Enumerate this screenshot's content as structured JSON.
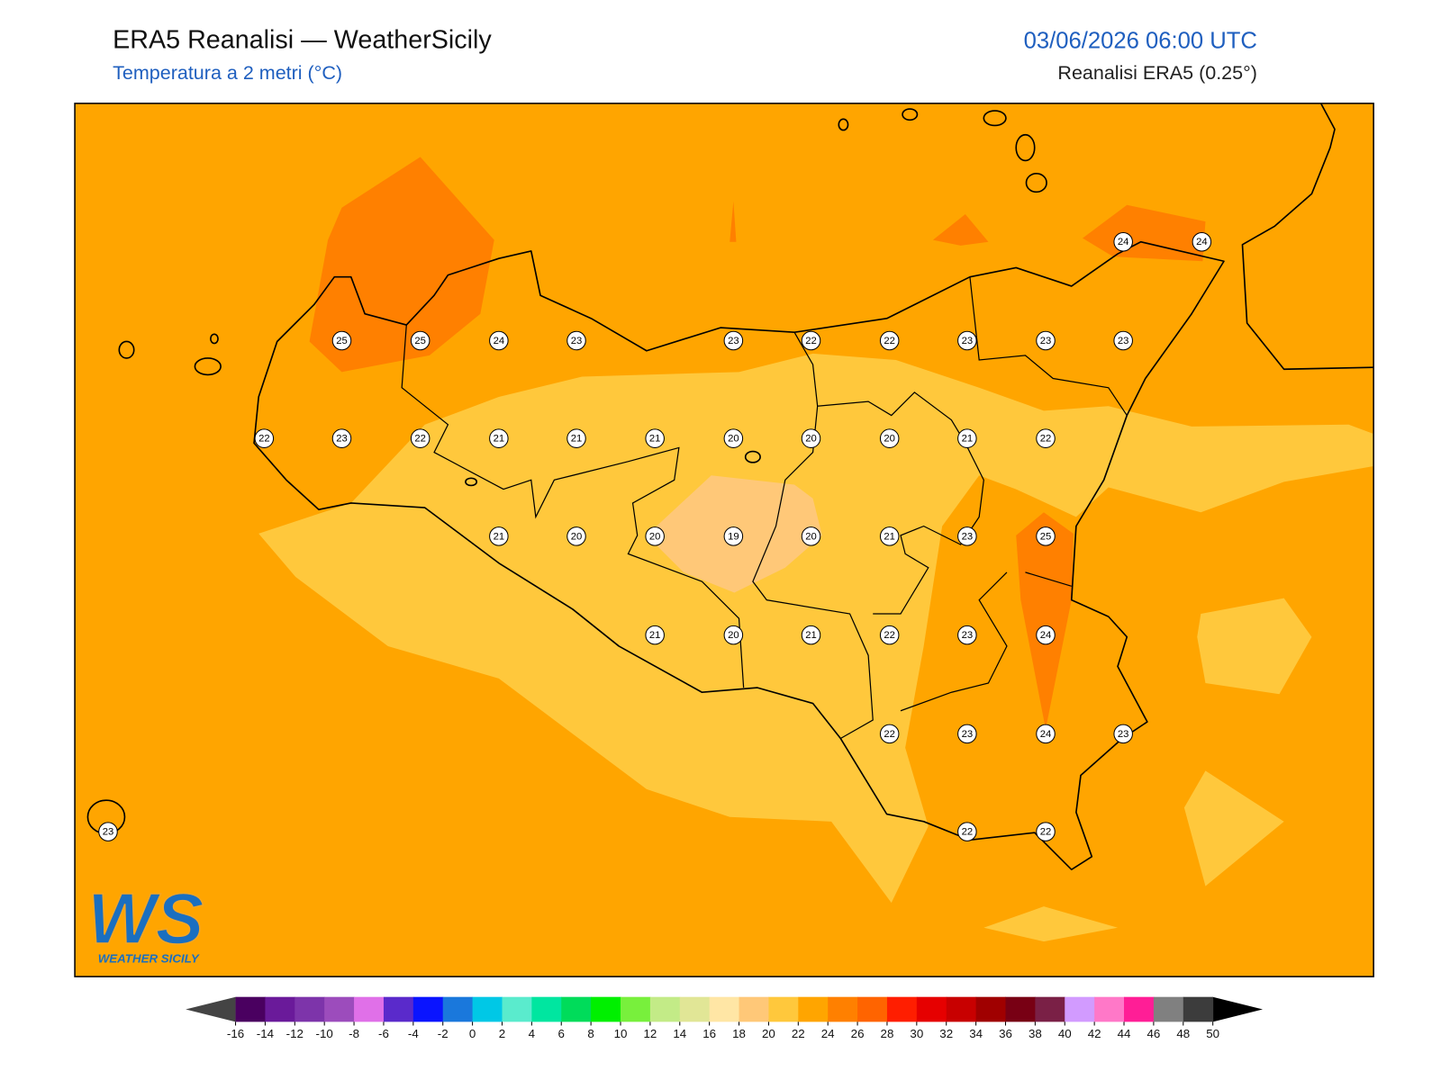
{
  "header": {
    "title": "ERA5 Reanalisi — WeatherSicily",
    "subtitle": "Temperatura a 2 metri (°C)",
    "datetime": "03/06/2026 06:00 UTC",
    "source": "Reanalisi ERA5 (0.25°)"
  },
  "map": {
    "stations": [
      24,
      24,
      25,
      25,
      24,
      23,
      23,
      22,
      22,
      23,
      23,
      23,
      22,
      23,
      22,
      21,
      21,
      21,
      20,
      20,
      20,
      21,
      22,
      21,
      20,
      20,
      19,
      20,
      21,
      23,
      25,
      21,
      20,
      21,
      22,
      23,
      24,
      22,
      23,
      24,
      23,
      23,
      22,
      22
    ]
  },
  "colorbar": {
    "ticks": [
      -16,
      -14,
      -12,
      -10,
      -8,
      -6,
      -4,
      -2,
      0,
      2,
      4,
      6,
      8,
      10,
      12,
      14,
      16,
      18,
      20,
      22,
      24,
      26,
      28,
      30,
      32,
      34,
      36,
      38,
      40,
      42,
      44,
      46,
      48,
      50
    ],
    "colors": [
      "#4a0060",
      "#6a1a9a",
      "#7d34aa",
      "#9c4cbc",
      "#e070e8",
      "#5a2acb",
      "#0a14ff",
      "#1a78dc",
      "#00c8e6",
      "#5aebcd",
      "#00e6a0",
      "#00dc5a",
      "#00f000",
      "#78f03c",
      "#c3eb87",
      "#e1e696",
      "#ffe6a5",
      "#ffc878",
      "#ffc83c",
      "#ffa500",
      "#ff8000",
      "#ff6400",
      "#ff1e00",
      "#e60000",
      "#c80000",
      "#a00000",
      "#780014",
      "#7a2046",
      "#d29bff",
      "#ff78c8",
      "#ff1e96",
      "#808080",
      "#3c3c3c"
    ],
    "under_color": "#444444",
    "over_color": "#000000"
  },
  "logo": {
    "mark": "WS",
    "text": "WEATHER SICILY"
  }
}
